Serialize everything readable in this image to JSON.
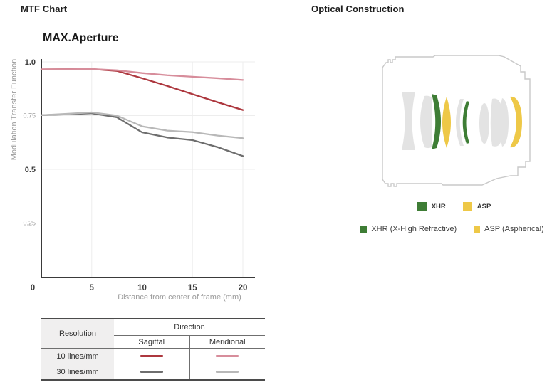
{
  "page": {
    "left_heading": "MTF Chart",
    "right_heading": "Optical Construction"
  },
  "chart": {
    "title": "MAX.Aperture"
  },
  "chart_data": {
    "type": "line",
    "title": "MAX.Aperture",
    "xlabel": "Distance from center of frame (mm)",
    "ylabel": "Modulation Transfer Function",
    "xlim": [
      0,
      21
    ],
    "ylim": [
      0,
      1.0
    ],
    "grid": true,
    "legend_position": "table-below",
    "xticks": [
      0,
      5,
      10,
      15,
      20
    ],
    "yticks": [
      {
        "v": 0.25,
        "label": "0.25",
        "major": false
      },
      {
        "v": 0.5,
        "label": "0.5",
        "major": true
      },
      {
        "v": 0.75,
        "label": "0.75",
        "major": false
      },
      {
        "v": 1.0,
        "label": "1.0",
        "major": true
      }
    ],
    "x": [
      0,
      2.5,
      5,
      7.5,
      10,
      12.5,
      15,
      17.5,
      20
    ],
    "series": [
      {
        "name": "10 lines/mm Sagittal",
        "color": "#ad373e",
        "values": [
          0.965,
          0.966,
          0.967,
          0.958,
          0.924,
          0.888,
          0.85,
          0.812,
          0.776
        ]
      },
      {
        "name": "10 lines/mm Meridional",
        "color": "#d78d9b",
        "values": [
          0.965,
          0.966,
          0.967,
          0.961,
          0.948,
          0.938,
          0.931,
          0.924,
          0.916
        ]
      },
      {
        "name": "30 lines/mm Sagittal",
        "color": "#6e6e6e",
        "values": [
          0.752,
          0.756,
          0.761,
          0.742,
          0.672,
          0.648,
          0.636,
          0.603,
          0.562
        ]
      },
      {
        "name": "30 lines/mm Meridional",
        "color": "#b8b8b8",
        "values": [
          0.752,
          0.758,
          0.765,
          0.75,
          0.7,
          0.68,
          0.673,
          0.657,
          0.645
        ]
      }
    ]
  },
  "mtf_table": {
    "resolution_header": "Resolution",
    "direction_header": "Direction",
    "columns": [
      "Sagittal",
      "Meridional"
    ],
    "rows": [
      {
        "resolution": "10 lines/mm"
      },
      {
        "resolution": "30 lines/mm"
      }
    ]
  },
  "optical": {
    "legend_badges": [
      {
        "label": "XHR",
        "color": "#3e7d35"
      },
      {
        "label": "ASP",
        "color": "#eec847"
      }
    ],
    "legend_items": [
      {
        "label": "XHR (X-High Refractive)",
        "color": "#3e7d35"
      },
      {
        "label": "ASP (Aspherical)",
        "color": "#eec847"
      }
    ]
  },
  "colors": {
    "xhr": "#3e7d35",
    "asp": "#eec847",
    "element_gray": "#e3e3e3",
    "outline": "#c9c9c9",
    "axis": "#3a3a3a",
    "grid": "#ededed"
  }
}
